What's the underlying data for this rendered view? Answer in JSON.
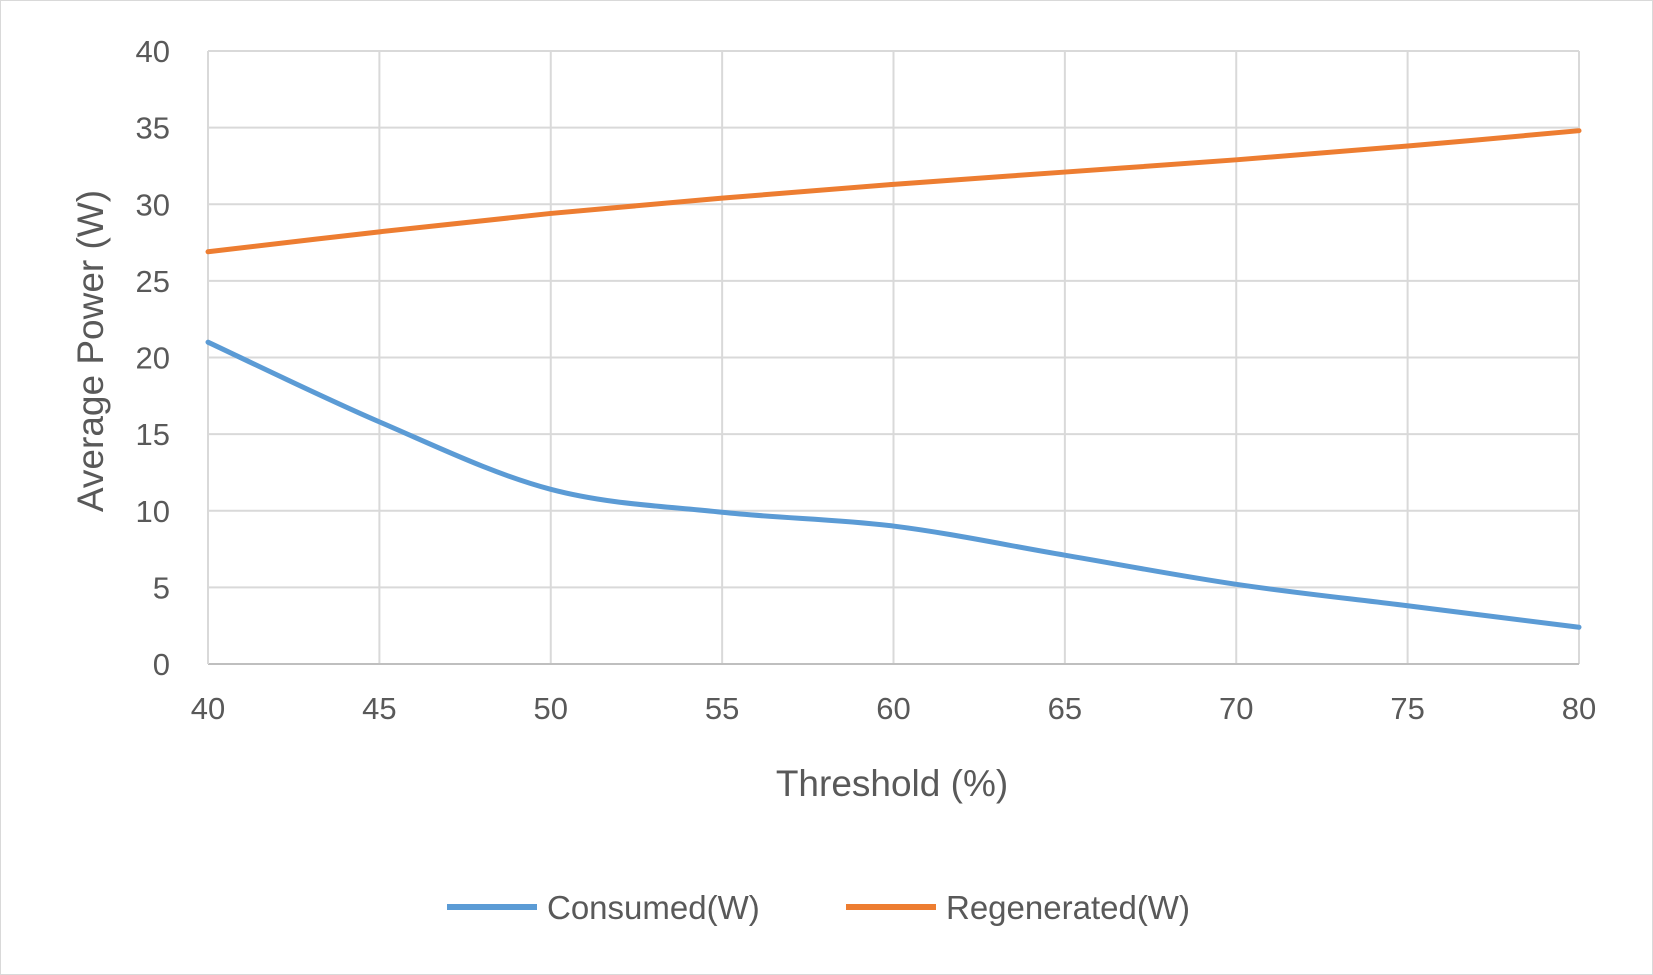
{
  "chart_data": {
    "type": "line",
    "xlabel": "Threshold (%)",
    "ylabel": "Average Power (W)",
    "xlim": [
      40,
      80
    ],
    "ylim": [
      0,
      40
    ],
    "x_ticks": [
      40,
      45,
      50,
      55,
      60,
      65,
      70,
      75,
      80
    ],
    "y_ticks": [
      0,
      5,
      10,
      15,
      20,
      25,
      30,
      35,
      40
    ],
    "grid": true,
    "smooth": true,
    "legend_position": "bottom",
    "x": [
      40,
      45,
      50,
      55,
      60,
      65,
      70,
      75,
      80
    ],
    "series": [
      {
        "name": "Consumed(W)",
        "color": "#5b9bd5",
        "values": [
          21.0,
          15.8,
          11.4,
          9.9,
          9.0,
          7.1,
          5.2,
          3.8,
          2.4
        ]
      },
      {
        "name": "Regenerated(W)",
        "color": "#ed7d31",
        "values": [
          26.9,
          28.2,
          29.4,
          30.4,
          31.3,
          32.1,
          32.9,
          33.8,
          34.8
        ]
      }
    ]
  }
}
